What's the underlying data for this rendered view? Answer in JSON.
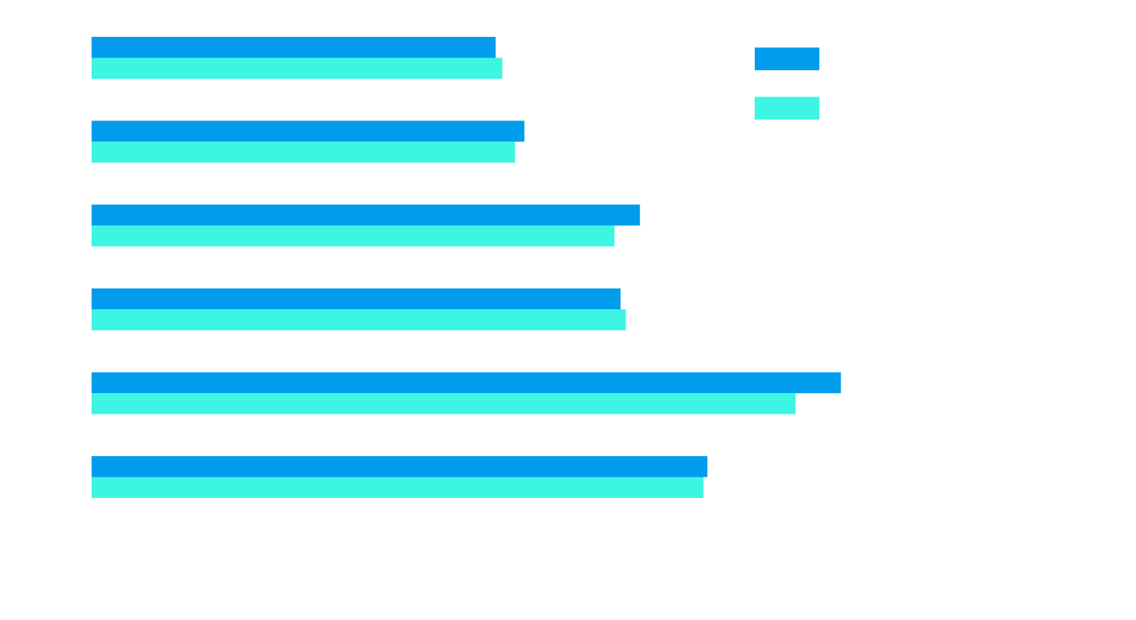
{
  "chart_data": {
    "type": "bar",
    "orientation": "horizontal",
    "categories": [
      "",
      "",
      "",
      "",
      "",
      ""
    ],
    "series": [
      {
        "values": [
          60.5,
          64.8,
          82.1,
          79.2,
          112.2,
          92.2
        ]
      },
      {
        "values": [
          61.5,
          63.4,
          78.3,
          80.0,
          105.4,
          91.6
        ]
      }
    ],
    "xlim": [
      0,
      150
    ],
    "grid": false,
    "legend": {
      "position": "top-right"
    }
  },
  "colors": {
    "series_1": "#019ceb",
    "series_2": "#3df5e3",
    "background": "#ffffff"
  }
}
